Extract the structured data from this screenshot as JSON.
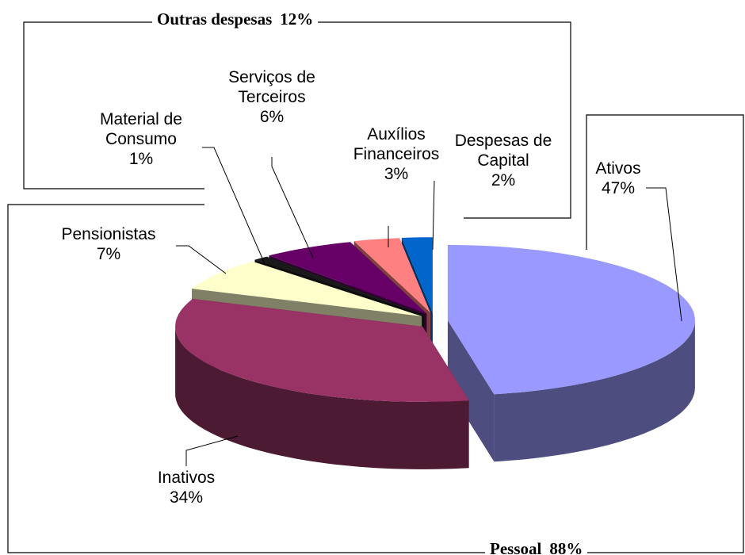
{
  "chart_data": {
    "type": "pie3d",
    "categories": [
      "Ativos",
      "Inativos",
      "Pensionistas",
      "Material de Consumo",
      "Serviços de Terceiros",
      "Auxílios Financeiros",
      "Despesas de Capital"
    ],
    "values": [
      47,
      34,
      7,
      1,
      6,
      3,
      2
    ],
    "value_labels": [
      "47%",
      "34%",
      "7%",
      "1%",
      "6%",
      "3%",
      "2%"
    ],
    "colors": [
      "#9999ff",
      "#993366",
      "#ffffcc",
      "#1a1a1a",
      "#660066",
      "#ff8080",
      "#0066cc"
    ],
    "groups": [
      {
        "name": "Pessoal",
        "value": 88,
        "value_label": "88%"
      },
      {
        "name": "Outras despesas",
        "value": 12,
        "value_label": "12%"
      }
    ]
  }
}
